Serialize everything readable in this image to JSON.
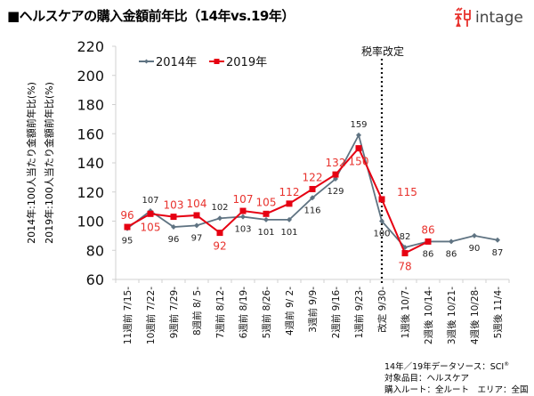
{
  "header": {
    "title": "■ヘルスケアの購入金額前年比（14年vs.19年）",
    "logo_text": "intage",
    "logo_icon": "intage-kanji-logo-icon",
    "logo_color": "#e8322d"
  },
  "source_note": {
    "line1": "14年／19年データソース：SCI",
    "line1_mark": "®",
    "line2": "対象品目：ヘルスケア",
    "line3": "購入ルート：全ルート　エリア：全国"
  },
  "chart_data": {
    "type": "line",
    "title": "ヘルスケアの購入金額前年比（14年vs.19年）",
    "ylabel_lines": [
      "2014年:100人当たり金額前年比(%)",
      "2019年:100人当たり金額前年比(%)"
    ],
    "xlabel": "",
    "ylim": [
      60,
      220
    ],
    "yticks": [
      60,
      80,
      100,
      120,
      140,
      160,
      180,
      200,
      220
    ],
    "grid": false,
    "legend_position": "top-left",
    "categories": [
      "11週前 7/15-",
      "10週前 7/22-",
      "9週前 7/29-",
      "8週前 8/ 5-",
      "7週前 8/12-",
      "6週前 8/19-",
      "5週前 8/26-",
      "4週前 9/ 2-",
      "3週前 9/9-",
      "2週前 9/16-",
      "1週前 9/23-",
      "改定 9/30-",
      "1週後 10/7-",
      "2週後 10/14-",
      "3週後 10/21-",
      "4週後 10/28-",
      "5週後 11/4-"
    ],
    "series": [
      {
        "name": "2014年",
        "color": "#5f7382",
        "marker": "diamond",
        "label_color": "#222222",
        "values": [
          95,
          107,
          96,
          97,
          102,
          103,
          101,
          101,
          116,
          129,
          159,
          100,
          82,
          86,
          86,
          90,
          87
        ],
        "label_position": [
          "below",
          "above",
          "below",
          "below",
          "above",
          "below",
          "below",
          "below",
          "below",
          "below",
          "above",
          "below",
          "above",
          "below",
          "below",
          "below",
          "below"
        ]
      },
      {
        "name": "2019年",
        "color": "#e60012",
        "marker": "square",
        "label_color": "#e8322d",
        "values": [
          96,
          105,
          103,
          104,
          92,
          107,
          105,
          112,
          122,
          132,
          150,
          115,
          78,
          86,
          null,
          null,
          null
        ],
        "label_position": [
          "above",
          "below",
          "above",
          "above",
          "below",
          "above",
          "above",
          "above",
          "above",
          "above",
          "below",
          "right",
          "below",
          "above",
          null,
          null,
          null
        ]
      }
    ],
    "annotations": [
      {
        "text": "税率改定",
        "category": "改定 9/30-",
        "style": "dotted-vertical-line"
      }
    ]
  }
}
